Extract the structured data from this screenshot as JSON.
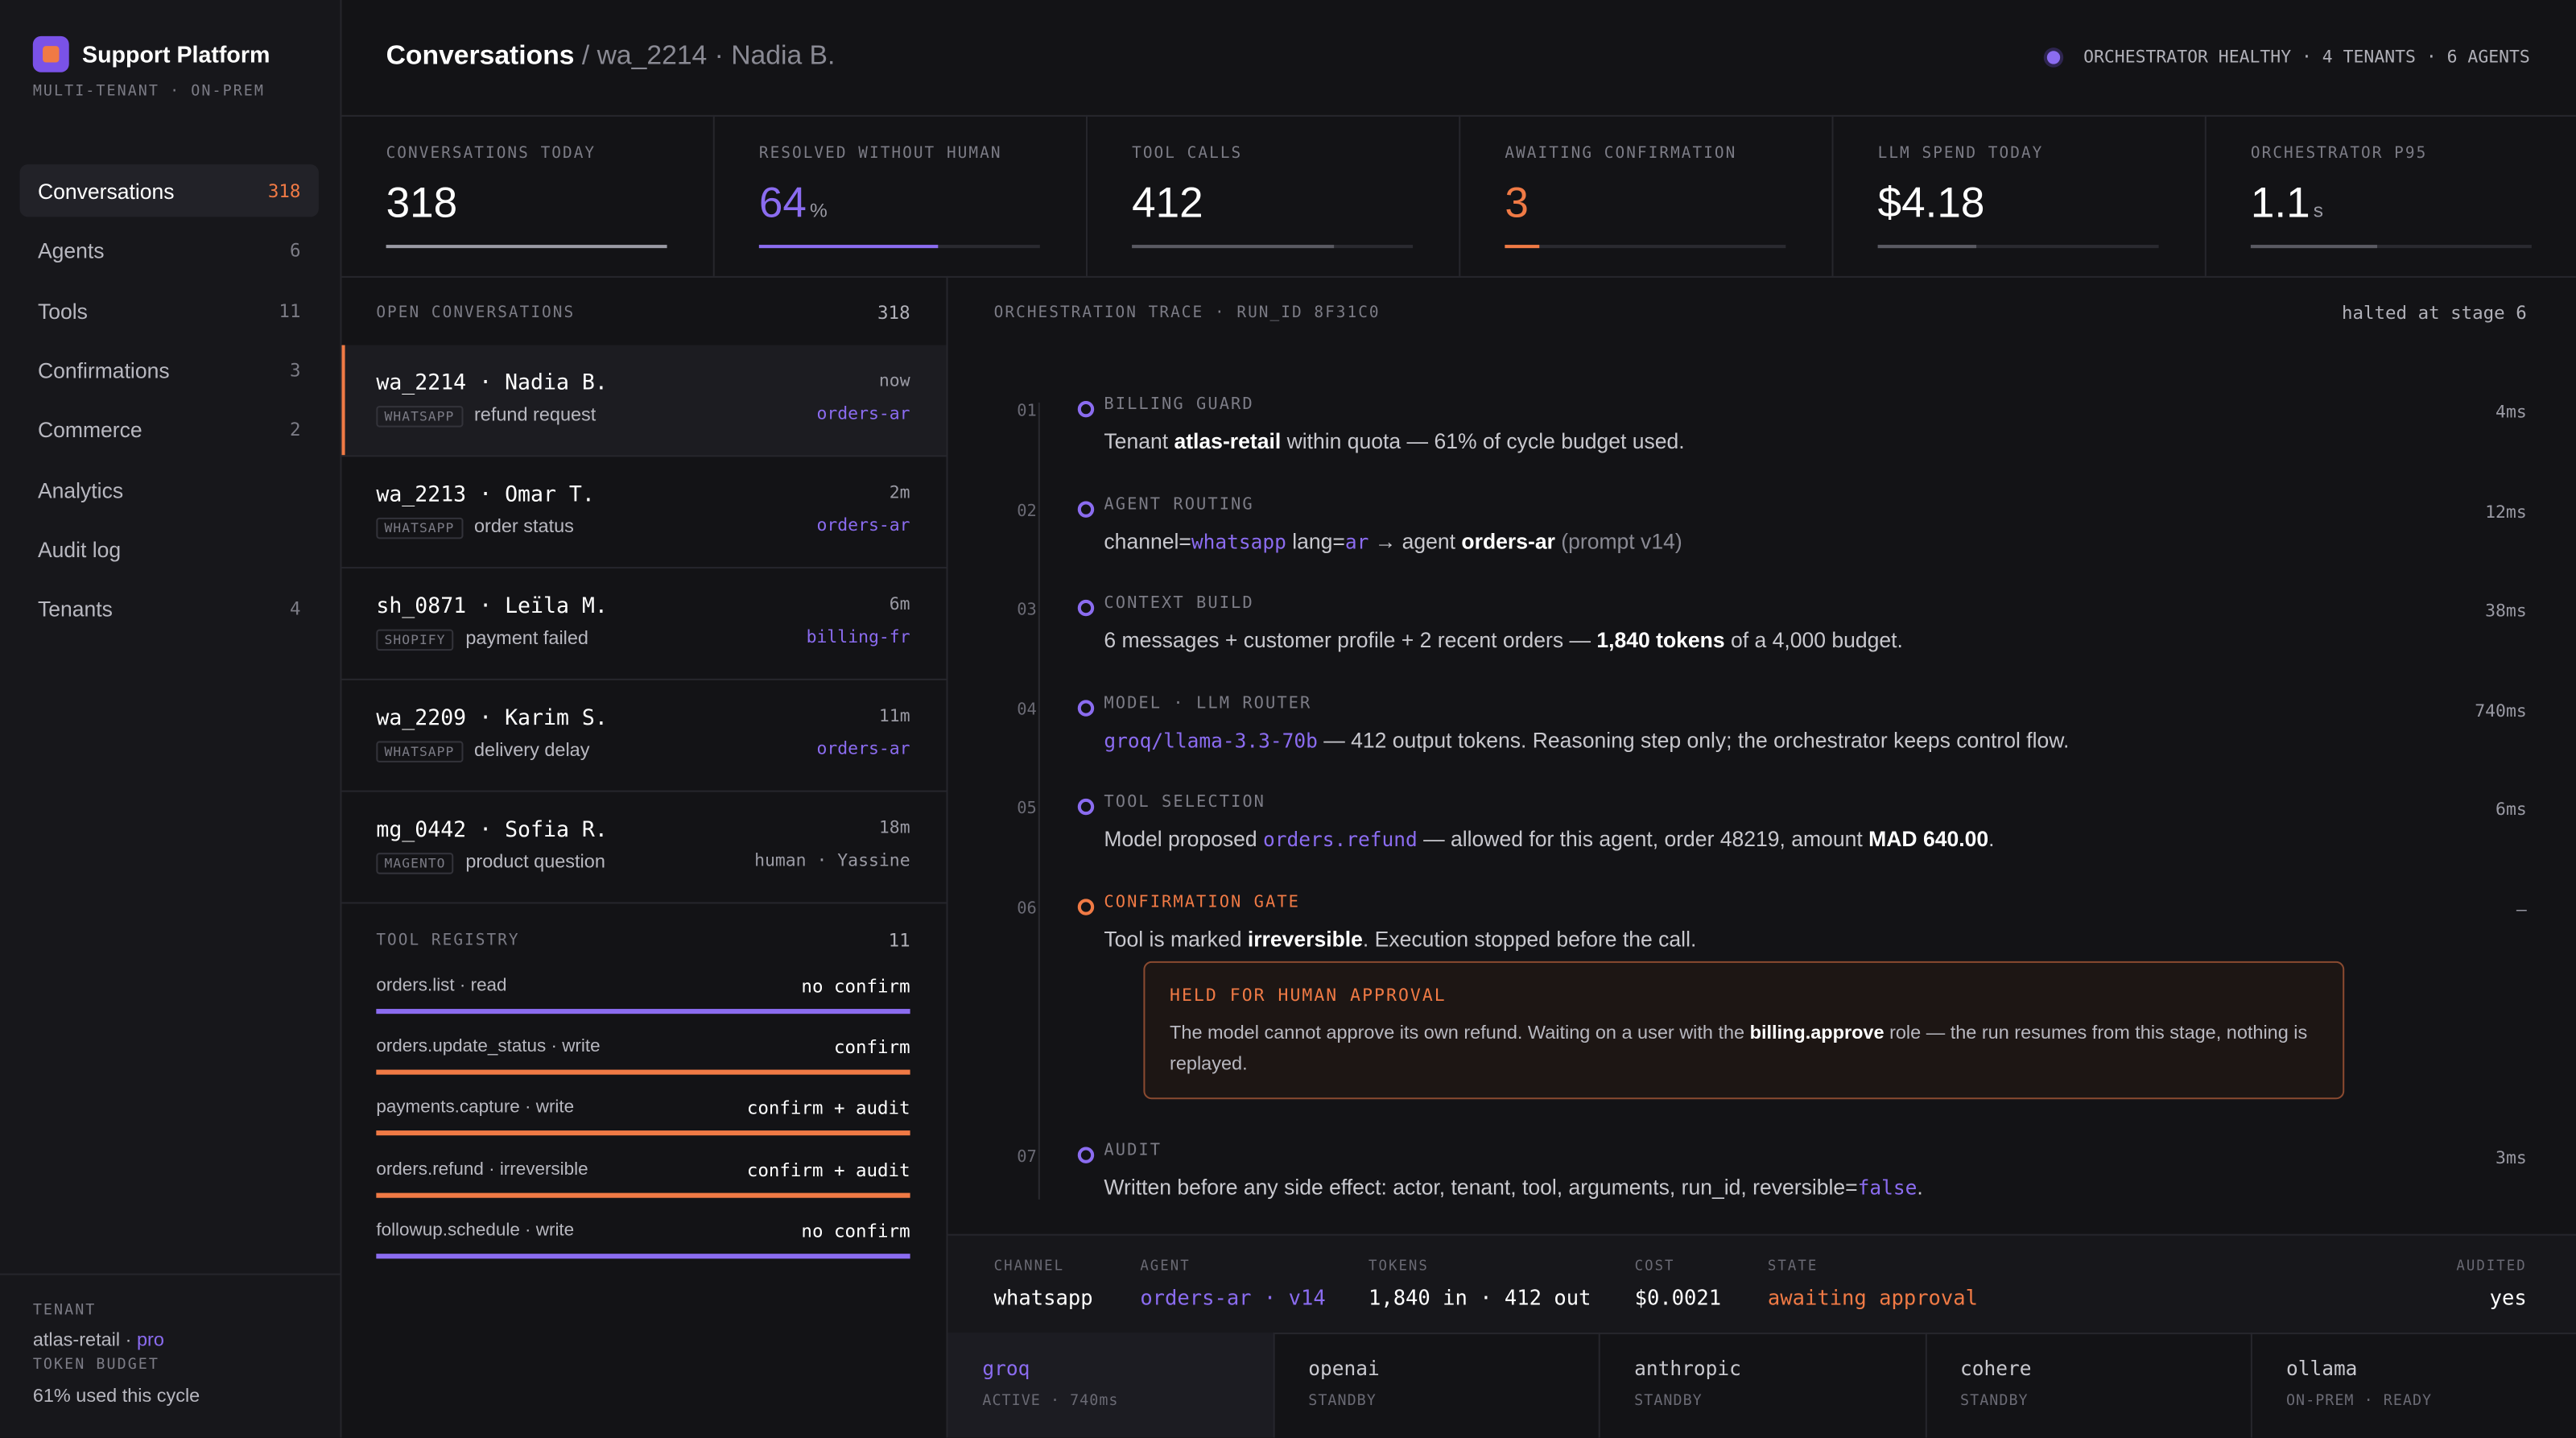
{
  "brand": {
    "name": "Support Platform",
    "subtitle": "MULTI-TENANT · ON-PREM"
  },
  "nav": [
    {
      "label": "Conversations",
      "count": 318,
      "active": true
    },
    {
      "label": "Agents",
      "count": 6
    },
    {
      "label": "Tools",
      "count": 11
    },
    {
      "label": "Confirmations",
      "count": 3
    },
    {
      "label": "Commerce",
      "count": 2
    },
    {
      "label": "Analytics"
    },
    {
      "label": "Audit log"
    },
    {
      "label": "Tenants",
      "count": 4
    }
  ],
  "tenant": {
    "heading": "TENANT",
    "line": [
      {
        "text": "atlas-retail · "
      },
      {
        "text": "pro",
        "style": "accent"
      }
    ],
    "budget_heading": "TOKEN BUDGET",
    "budget_note": "61% used this cycle"
  },
  "header": {
    "title": "Conversations",
    "crumb": "/ wa_2214 · Nadia B.",
    "status": "ORCHESTRATOR HEALTHY · 4 TENANTS · 6 AGENTS"
  },
  "kpis": [
    {
      "label": "CONVERSATIONS TODAY",
      "value": 318,
      "progress": 100,
      "color": "#9a9aa4"
    },
    {
      "label": "RESOLVED WITHOUT HUMAN",
      "value": 64,
      "unit": "%",
      "progress": 64,
      "color": "#8b6cf0",
      "value_color": "#8b6cf0"
    },
    {
      "label": "TOOL CALLS",
      "value": 412,
      "progress": 72,
      "color": "#5a5a62"
    },
    {
      "label": "AWAITING CONFIRMATION",
      "value": 3,
      "progress": 12,
      "color": "#f07a45",
      "value_color": "#f07a45"
    },
    {
      "label": "LLM SPEND TODAY",
      "value": "$4.18",
      "progress": 35,
      "color": "#5a5a62"
    },
    {
      "label": "ORCHESTRATOR P95",
      "value": 1.1,
      "unit": "s",
      "progress": 45,
      "color": "#5a5a62"
    }
  ],
  "open_conversations": {
    "heading": "OPEN CONVERSATIONS",
    "count": 318,
    "items": [
      {
        "title": "wa_2214 · Nadia B.",
        "time": "now",
        "channel": "WHATSAPP",
        "topic": "refund request",
        "agent": "orders-ar",
        "active": true
      },
      {
        "title": "wa_2213 · Omar T.",
        "time": "2m",
        "channel": "WHATSAPP",
        "topic": "order status",
        "agent": "orders-ar"
      },
      {
        "title": "sh_0871 · Leïla M.",
        "time": "6m",
        "channel": "SHOPIFY",
        "topic": "payment failed",
        "agent": "billing-fr"
      },
      {
        "title": "wa_2209 · Karim S.",
        "time": "11m",
        "channel": "WHATSAPP",
        "topic": "delivery delay",
        "agent": "orders-ar"
      },
      {
        "title": "mg_0442 · Sofia R.",
        "time": "18m",
        "channel": "MAGENTO",
        "topic": "product question",
        "agent": "human · Yassine",
        "agent_muted": true
      }
    ]
  },
  "tool_registry": {
    "heading": "TOOL REGISTRY",
    "count": 11,
    "items": [
      {
        "name": "orders.list · read",
        "policy": "no confirm",
        "color": "#8b6cf0"
      },
      {
        "name": "orders.update_status · write",
        "policy": "confirm",
        "color": "#f07a45"
      },
      {
        "name": "payments.capture · write",
        "policy": "confirm + audit",
        "color": "#f07a45"
      },
      {
        "name": "orders.refund · irreversible",
        "policy": "confirm + audit",
        "color": "#f07a45"
      },
      {
        "name": "followup.schedule · write",
        "policy": "no confirm",
        "color": "#8b6cf0"
      }
    ]
  },
  "trace": {
    "heading": "ORCHESTRATION TRACE · RUN_ID 8F31C0",
    "status": "halted at stage 6",
    "steps": [
      {
        "num": "01",
        "title": "BILLING GUARD",
        "duration": "4ms",
        "color": "#8b6cf0",
        "parts": [
          {
            "text": "Tenant "
          },
          {
            "text": "atlas-retail",
            "style": "strong"
          },
          {
            "text": " within quota — 61% of cycle budget used."
          }
        ]
      },
      {
        "num": "02",
        "title": "AGENT ROUTING",
        "duration": "12ms",
        "color": "#8b6cf0",
        "parts": [
          {
            "text": "channel="
          },
          {
            "text": "whatsapp",
            "style": "code"
          },
          {
            "text": " lang="
          },
          {
            "text": "ar",
            "style": "code"
          },
          {
            "text": " → agent "
          },
          {
            "text": "orders-ar",
            "style": "strong"
          },
          {
            "text": " (prompt v14)",
            "style": "muted"
          }
        ]
      },
      {
        "num": "03",
        "title": "CONTEXT BUILD",
        "duration": "38ms",
        "color": "#8b6cf0",
        "parts": [
          {
            "text": "6 messages + customer profile + 2 recent orders — "
          },
          {
            "text": "1,840 tokens",
            "style": "strong"
          },
          {
            "text": " of a 4,000 budget."
          }
        ]
      },
      {
        "num": "04",
        "title": "MODEL · LLM ROUTER",
        "duration": "740ms",
        "color": "#8b6cf0",
        "parts": [
          {
            "text": "groq/llama-3.3-70b",
            "style": "code"
          },
          {
            "text": " — 412 output tokens. Reasoning step only; the orchestrator keeps control flow."
          }
        ]
      },
      {
        "num": "05",
        "title": "TOOL SELECTION",
        "duration": "6ms",
        "color": "#8b6cf0",
        "parts": [
          {
            "text": "Model proposed "
          },
          {
            "text": "orders.refund",
            "style": "code"
          },
          {
            "text": " — allowed for this agent, order 48219, amount "
          },
          {
            "text": "MAD 640.00",
            "style": "strong"
          },
          {
            "text": "."
          }
        ]
      },
      {
        "num": "06",
        "title": "CONFIRMATION GATE",
        "duration": "—",
        "color": "#f07a45",
        "parts": [
          {
            "text": "Tool is marked "
          },
          {
            "text": "irreversible",
            "style": "strong"
          },
          {
            "text": ". Execution stopped before the call."
          }
        ],
        "callout": {
          "title": "HELD FOR HUMAN APPROVAL",
          "parts": [
            {
              "text": "The model cannot approve its own refund. Waiting on a user with the "
            },
            {
              "text": "billing.approve",
              "style": "strong"
            },
            {
              "text": " role — the run resumes from this stage, nothing is replayed."
            }
          ]
        }
      },
      {
        "num": "07",
        "title": "AUDIT",
        "duration": "3ms",
        "color": "#8b6cf0",
        "parts": [
          {
            "text": "Written before any side effect: actor, tenant, tool, arguments, run_id, reversible="
          },
          {
            "text": "false",
            "style": "code"
          },
          {
            "text": "."
          }
        ]
      }
    ]
  },
  "run_summary": [
    {
      "label": "CHANNEL",
      "value": "whatsapp"
    },
    {
      "label": "AGENT",
      "value": "orders-ar · v14",
      "color": "#8b6cf0"
    },
    {
      "label": "TOKENS",
      "value": "1,840 in · 412 out"
    },
    {
      "label": "COST",
      "value": "$0.0021"
    },
    {
      "label": "STATE",
      "value": "awaiting approval",
      "color": "#f07a45"
    },
    {
      "label": "AUDITED",
      "value": "yes"
    }
  ],
  "providers": [
    {
      "name": "groq",
      "status": "ACTIVE · 740ms",
      "active": true
    },
    {
      "name": "openai",
      "status": "STANDBY"
    },
    {
      "name": "anthropic",
      "status": "STANDBY"
    },
    {
      "name": "cohere",
      "status": "STANDBY"
    },
    {
      "name": "ollama",
      "status": "ON-PREM · READY"
    }
  ]
}
